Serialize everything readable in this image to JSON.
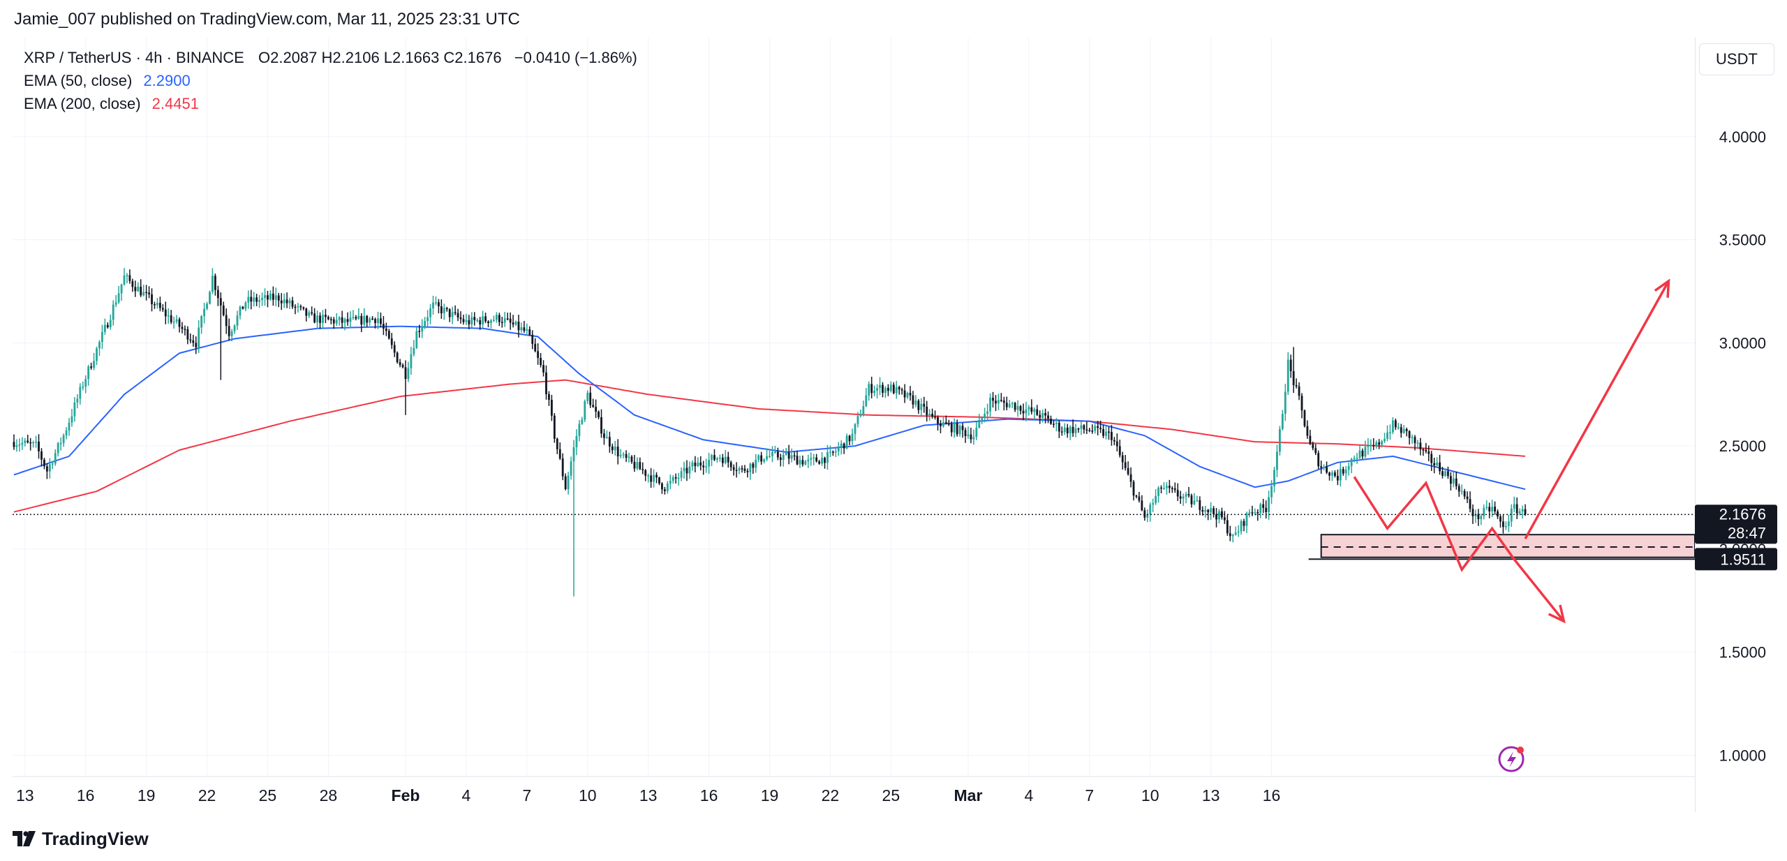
{
  "header": {
    "publish_text": "Jamie_007 published on TradingView.com, Mar 11, 2025 23:31 UTC"
  },
  "legend": {
    "symbol": "XRP / TetherUS · 4h · BINANCE",
    "ohlc": "O2.2087  H2.2106  L2.1663  C2.1676",
    "change": "−0.0410 (−1.86%)",
    "ema50_label": "EMA (50, close)",
    "ema50_value": "2.2900",
    "ema200_label": "EMA (200, close)",
    "ema200_value": "2.4451"
  },
  "price_axis": {
    "currency": "USDT",
    "current_price": "2.1676",
    "countdown": "28:47",
    "support_price": "1.9511"
  },
  "footer": {
    "brand": "TradingView"
  },
  "colors": {
    "up": "#26a69a",
    "down": "#131722",
    "ema50": "#2962ff",
    "ema200": "#f23645",
    "arrows": "#f23645",
    "zone_fill": "#f7d2d4"
  },
  "chart_data": {
    "type": "candlestick",
    "title": "XRP / TetherUS · 4h · BINANCE",
    "ylim": [
      0.9,
      4.48
    ],
    "y_ticks": [
      "4.0000",
      "3.5000",
      "3.0000",
      "2.5000",
      "2.0000",
      "1.5000",
      "1.0000"
    ],
    "x_ticks": [
      "13",
      "16",
      "19",
      "22",
      "25",
      "28",
      "Feb",
      "4",
      "7",
      "10",
      "13",
      "16",
      "19",
      "22",
      "25",
      "Mar",
      "4",
      "7",
      "10",
      "13",
      "16"
    ],
    "price_anchors": [
      [
        0,
        2.52
      ],
      [
        8,
        2.5
      ],
      [
        12,
        2.38
      ],
      [
        18,
        2.55
      ],
      [
        25,
        2.8
      ],
      [
        34,
        3.1
      ],
      [
        40,
        3.32
      ],
      [
        46,
        3.25
      ],
      [
        54,
        3.15
      ],
      [
        60,
        3.08
      ],
      [
        66,
        3.0
      ],
      [
        72,
        3.32
      ],
      [
        78,
        3.05
      ],
      [
        84,
        3.2
      ],
      [
        96,
        3.22
      ],
      [
        108,
        3.12
      ],
      [
        120,
        3.1
      ],
      [
        132,
        3.12
      ],
      [
        138,
        2.95
      ],
      [
        142,
        2.85
      ],
      [
        146,
        3.05
      ],
      [
        152,
        3.18
      ],
      [
        164,
        3.1
      ],
      [
        176,
        3.12
      ],
      [
        186,
        3.05
      ],
      [
        192,
        2.85
      ],
      [
        196,
        2.55
      ],
      [
        200,
        2.3
      ],
      [
        204,
        2.55
      ],
      [
        208,
        2.75
      ],
      [
        214,
        2.55
      ],
      [
        220,
        2.45
      ],
      [
        228,
        2.38
      ],
      [
        236,
        2.3
      ],
      [
        246,
        2.4
      ],
      [
        256,
        2.45
      ],
      [
        264,
        2.38
      ],
      [
        272,
        2.45
      ],
      [
        280,
        2.45
      ],
      [
        288,
        2.42
      ],
      [
        296,
        2.45
      ],
      [
        304,
        2.55
      ],
      [
        310,
        2.78
      ],
      [
        318,
        2.78
      ],
      [
        326,
        2.72
      ],
      [
        334,
        2.62
      ],
      [
        342,
        2.58
      ],
      [
        348,
        2.55
      ],
      [
        354,
        2.72
      ],
      [
        362,
        2.7
      ],
      [
        372,
        2.65
      ],
      [
        380,
        2.58
      ],
      [
        390,
        2.58
      ],
      [
        398,
        2.55
      ],
      [
        404,
        2.35
      ],
      [
        410,
        2.15
      ],
      [
        416,
        2.3
      ],
      [
        424,
        2.25
      ],
      [
        432,
        2.2
      ],
      [
        438,
        2.15
      ],
      [
        442,
        2.05
      ],
      [
        448,
        2.18
      ],
      [
        454,
        2.2
      ],
      [
        458,
        2.45
      ],
      [
        462,
        2.9
      ],
      [
        466,
        2.72
      ],
      [
        470,
        2.5
      ],
      [
        474,
        2.4
      ],
      [
        480,
        2.35
      ],
      [
        486,
        2.45
      ],
      [
        494,
        2.5
      ],
      [
        500,
        2.6
      ],
      [
        506,
        2.55
      ],
      [
        512,
        2.45
      ],
      [
        518,
        2.38
      ],
      [
        524,
        2.3
      ],
      [
        530,
        2.15
      ],
      [
        536,
        2.2
      ],
      [
        540,
        2.1
      ],
      [
        544,
        2.2
      ],
      [
        548,
        2.17
      ]
    ],
    "ema50_anchors": [
      [
        0,
        2.36
      ],
      [
        20,
        2.45
      ],
      [
        40,
        2.75
      ],
      [
        60,
        2.95
      ],
      [
        80,
        3.02
      ],
      [
        110,
        3.07
      ],
      [
        140,
        3.08
      ],
      [
        170,
        3.07
      ],
      [
        190,
        3.03
      ],
      [
        205,
        2.85
      ],
      [
        225,
        2.65
      ],
      [
        250,
        2.53
      ],
      [
        280,
        2.47
      ],
      [
        305,
        2.5
      ],
      [
        330,
        2.6
      ],
      [
        360,
        2.63
      ],
      [
        390,
        2.62
      ],
      [
        410,
        2.55
      ],
      [
        430,
        2.4
      ],
      [
        450,
        2.3
      ],
      [
        462,
        2.33
      ],
      [
        480,
        2.42
      ],
      [
        500,
        2.45
      ],
      [
        515,
        2.4
      ],
      [
        530,
        2.35
      ],
      [
        548,
        2.29
      ]
    ],
    "ema200_anchors": [
      [
        0,
        2.18
      ],
      [
        30,
        2.28
      ],
      [
        60,
        2.48
      ],
      [
        100,
        2.62
      ],
      [
        140,
        2.74
      ],
      [
        180,
        2.8
      ],
      [
        200,
        2.82
      ],
      [
        230,
        2.75
      ],
      [
        270,
        2.68
      ],
      [
        310,
        2.65
      ],
      [
        350,
        2.64
      ],
      [
        390,
        2.62
      ],
      [
        420,
        2.58
      ],
      [
        450,
        2.52
      ],
      [
        480,
        2.51
      ],
      [
        510,
        2.49
      ],
      [
        548,
        2.45
      ]
    ],
    "wick_spikes": [
      [
        203,
        1.77
      ],
      [
        464,
        2.98
      ],
      [
        75,
        2.82
      ],
      [
        142,
        2.65
      ]
    ],
    "current_price": 2.1676,
    "support_level": 1.9511,
    "support_zone": [
      1.96,
      2.07
    ],
    "zone_mid_line": 2.01,
    "scenario_up": [
      [
        548,
        2.05
      ],
      [
        600,
        3.3
      ]
    ],
    "scenario_down": [
      [
        486,
        2.35
      ],
      [
        498,
        2.1
      ],
      [
        512,
        2.32
      ],
      [
        525,
        1.9
      ],
      [
        536,
        2.1
      ],
      [
        544,
        1.95
      ],
      [
        562,
        1.65
      ]
    ],
    "bar_count": 549,
    "visible_bars": 610
  }
}
